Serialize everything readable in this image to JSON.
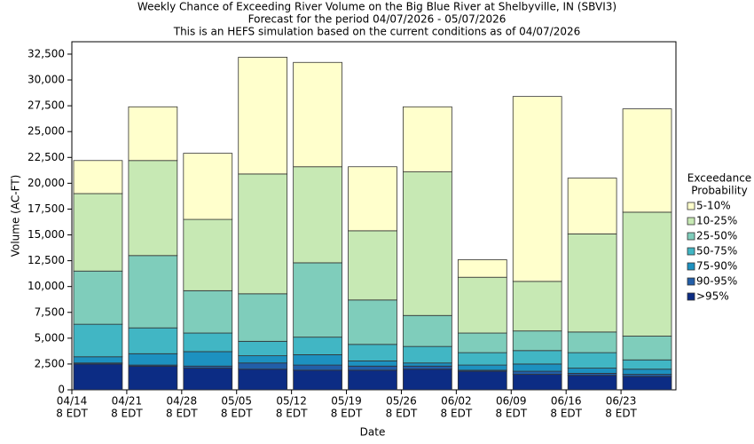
{
  "chart_data": {
    "type": "stacked-bar",
    "title": "Weekly Chance of Exceeding River Volume on the Big Blue River at Shelbyville, IN (SBVI3)",
    "subtitle": [
      "Forecast for the period 04/07/2026 - 05/07/2026",
      "This is an HEFS simulation based on the current conditions as of 04/07/2026"
    ],
    "x_label": "Date",
    "y_label": "Volume (AC-FT)",
    "legend_title": [
      "Exceedance",
      "Probability"
    ],
    "categories": [
      [
        "04/14",
        "8 EDT"
      ],
      [
        "04/21",
        "8 EDT"
      ],
      [
        "04/28",
        "8 EDT"
      ],
      [
        "05/05",
        "8 EDT"
      ],
      [
        "05/12",
        "8 EDT"
      ],
      [
        "05/19",
        "8 EDT"
      ],
      [
        "05/26",
        "8 EDT"
      ],
      [
        "06/02",
        "8 EDT"
      ],
      [
        "06/09",
        "8 EDT"
      ],
      [
        "06/16",
        "8 EDT"
      ],
      [
        "06/23",
        "8 EDT"
      ]
    ],
    "series": [
      {
        "name": ">95%",
        "color": "#0c2c84",
        "values": [
          2500,
          2300,
          2100,
          2000,
          1900,
          1900,
          2000,
          1800,
          1500,
          1400,
          1300
        ]
      },
      {
        "name": "90-95%",
        "color": "#225ea8",
        "values": [
          100,
          100,
          200,
          600,
          500,
          400,
          300,
          100,
          300,
          200,
          200
        ]
      },
      {
        "name": "75-90%",
        "color": "#1d91c0",
        "values": [
          600,
          1100,
          1400,
          700,
          1000,
          500,
          300,
          500,
          700,
          500,
          500
        ]
      },
      {
        "name": "50-75%",
        "color": "#41b6c4",
        "values": [
          3150,
          2500,
          1800,
          1400,
          1700,
          1600,
          1600,
          1200,
          1300,
          1500,
          900
        ]
      },
      {
        "name": "25-50%",
        "color": "#7fcdbb",
        "values": [
          5150,
          7000,
          4100,
          4600,
          7200,
          4300,
          3000,
          1900,
          1900,
          2000,
          2300
        ]
      },
      {
        "name": "10-25%",
        "color": "#c7e9b4",
        "values": [
          7500,
          9200,
          6900,
          11600,
          9300,
          6700,
          13900,
          5400,
          4800,
          9500,
          12000
        ]
      },
      {
        "name": "5-10%",
        "color": "#ffffcc",
        "values": [
          3200,
          5200,
          6400,
          11300,
          10100,
          6200,
          6300,
          1700,
          17900,
          5400,
          10000
        ]
      }
    ],
    "ylim": [
      0,
      33700
    ],
    "yticks": [
      0,
      {
        "value": 2500,
        "label": "2,500"
      },
      {
        "value": 5000,
        "label": "5,000"
      },
      {
        "value": 7500,
        "label": "7,500"
      },
      {
        "value": 10000,
        "label": "10,000"
      },
      {
        "value": 12500,
        "label": "12,500"
      },
      {
        "value": 15000,
        "label": "15,000"
      },
      {
        "value": 17500,
        "label": "17,500"
      },
      {
        "value": 20000,
        "label": "20,000"
      },
      {
        "value": 22500,
        "label": "22,500"
      },
      {
        "value": 25000,
        "label": "25,000"
      },
      {
        "value": 27500,
        "label": "27,500"
      },
      {
        "value": 30000,
        "label": "30,000"
      },
      {
        "value": 32500,
        "label": "32,500"
      }
    ],
    "grid": false,
    "legend": "right"
  }
}
